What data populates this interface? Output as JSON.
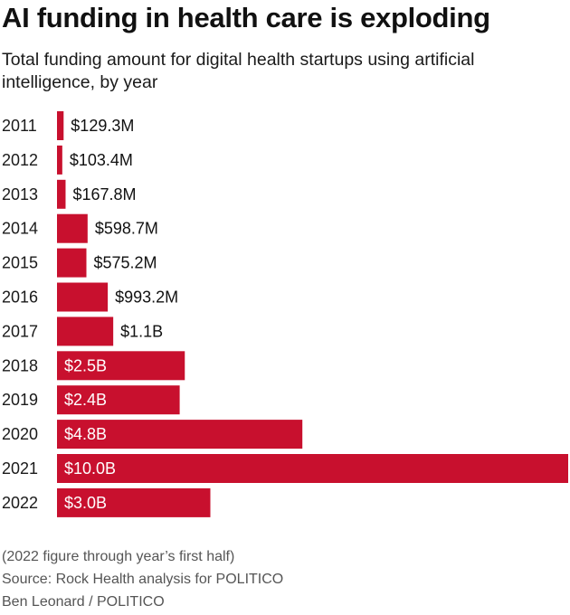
{
  "header": {
    "title": "AI funding in health care is exploding",
    "subtitle": "Total funding amount for digital health startups using artificial intelligence, by year"
  },
  "chart_data": {
    "type": "bar",
    "orientation": "horizontal",
    "title": "AI funding in health care is exploding",
    "subtitle": "Total funding amount for digital health startups using artificial intelligence, by year",
    "bar_color": "#c8102e",
    "inside_label_color": "#ffffff",
    "outside_label_color": "#111111",
    "categories": [
      "2011",
      "2012",
      "2013",
      "2014",
      "2015",
      "2016",
      "2017",
      "2018",
      "2019",
      "2020",
      "2021",
      "2022"
    ],
    "values": [
      129.3,
      103.4,
      167.8,
      598.7,
      575.2,
      993.2,
      1100,
      2500,
      2400,
      4800,
      10000,
      3000
    ],
    "unit": "$M",
    "labels": [
      "$129.3M",
      "$103.4M",
      "$167.8M",
      "$598.7M",
      "$575.2M",
      "$993.2M",
      "$1.1B",
      "$2.5B",
      "$2.4B",
      "$4.8B",
      "$10.0B",
      "$3.0B"
    ],
    "xlim": [
      0,
      10000
    ],
    "grid": false,
    "legend": "none"
  },
  "footer": {
    "note": "(2022 figure through year’s first half)",
    "source": "Source: Rock Health analysis for POLITICO",
    "credit": "Ben Leonard / POLITICO"
  }
}
